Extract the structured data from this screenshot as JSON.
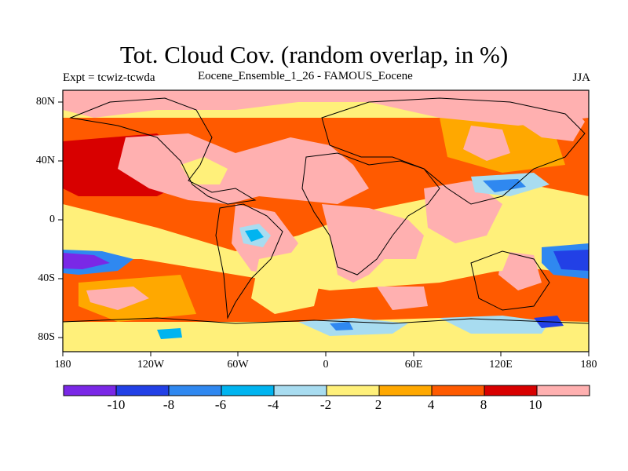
{
  "title": "Tot. Cloud Cov. (random overlap, in %)",
  "left_label": "Expt = tcwiz-tcwda",
  "subtitle": "Eocene_Ensemble_1_26 - FAMOUS_Eocene",
  "season": "JJA",
  "lat_labels": [
    "80N",
    "40N",
    "0",
    "40S",
    "80S"
  ],
  "lon_labels": [
    "180",
    "120W",
    "60W",
    "0",
    "60E",
    "120E",
    "180"
  ],
  "colorbar": {
    "colors": [
      "#7a28e6",
      "#2240e6",
      "#2f88f0",
      "#00b4f0",
      "#a8dcf0",
      "#fff07a",
      "#ffa800",
      "#ff5a00",
      "#d80000",
      "#ffb0b0"
    ],
    "labels": [
      "-10",
      "-8",
      "-6",
      "-4",
      "-2",
      "2",
      "4",
      "8",
      "10"
    ]
  }
}
